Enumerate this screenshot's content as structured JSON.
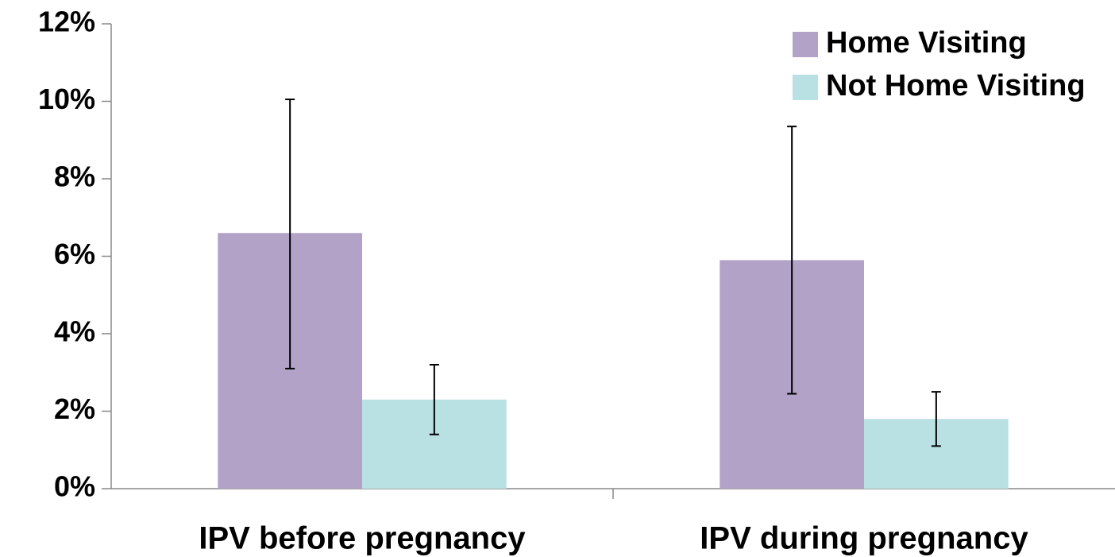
{
  "chart_data": {
    "type": "bar",
    "categories": [
      "IPV before pregnancy",
      "IPV during pregnancy"
    ],
    "series": [
      {
        "name": "Home Visiting",
        "color": "#b2a2c8",
        "values": [
          6.6,
          5.9
        ],
        "errors_minus": [
          3.5,
          3.45
        ],
        "errors_plus": [
          3.45,
          3.45
        ]
      },
      {
        "name": "Not Home Visiting",
        "color": "#b9e0e3",
        "values": [
          2.3,
          1.8
        ],
        "errors_minus": [
          0.9,
          0.7
        ],
        "errors_plus": [
          0.9,
          0.7
        ]
      }
    ],
    "ylim": [
      0,
      12
    ],
    "yticks": [
      {
        "value": 0,
        "label": "0%"
      },
      {
        "value": 2,
        "label": "2%"
      },
      {
        "value": 4,
        "label": "4%"
      },
      {
        "value": 6,
        "label": "6%"
      },
      {
        "value": 8,
        "label": "8%"
      },
      {
        "value": 10,
        "label": "10%"
      },
      {
        "value": 12,
        "label": "12%"
      }
    ],
    "grid": false,
    "legend": "top-right"
  }
}
